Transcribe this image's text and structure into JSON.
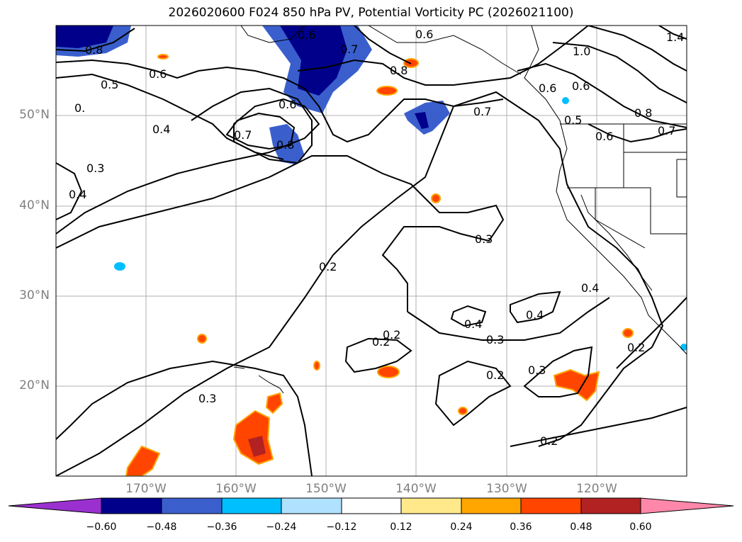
{
  "title": "2026020600 F024 850 hPa PV, Potential Vorticity PC (2026021100)",
  "lat_labels": [
    "50°N",
    "40°N",
    "30°N",
    "20°N"
  ],
  "lon_labels": [
    "170°W",
    "160°W",
    "150°W",
    "140°W",
    "130°W",
    "120°W"
  ],
  "colorbar": {
    "ticks": [
      "−0.60",
      "−0.48",
      "−0.36",
      "−0.24",
      "−0.12",
      "0.12",
      "0.24",
      "0.36",
      "0.48",
      "0.60"
    ],
    "colors": [
      "#9b30d0",
      "#00008b",
      "#3a5fcd",
      "#00bfff",
      "#b0e2ff",
      "#ffffff",
      "#ffe98a",
      "#ffa500",
      "#ff4500",
      "#b22222",
      "#ff88aa"
    ]
  },
  "contour_labels": [
    "0.8",
    "0.6",
    "0.5",
    "0.",
    "0.4",
    "0.3",
    "0.4",
    "0.7",
    "0.6",
    "0.8",
    "0.6",
    "0.7",
    "0.8",
    "0.6",
    "0.7",
    "0.6",
    "1.0",
    "0.6",
    "0.5",
    "0.6",
    "0.7",
    "0.8",
    "1.4",
    "0.2",
    "0.3",
    "0.4",
    "0.2",
    "0.3",
    "0.4",
    "0.2",
    "0.3",
    "0.3",
    "0.2",
    "0.4",
    "0.2",
    "0.2"
  ]
}
